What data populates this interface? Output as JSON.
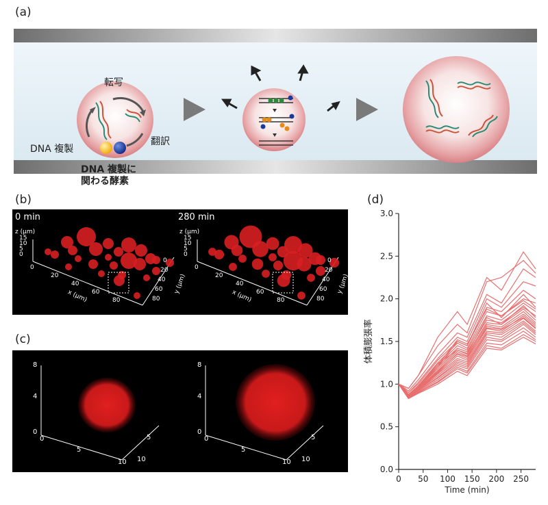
{
  "panels": {
    "a": {
      "label": "(a)",
      "labels": {
        "transcription": "転写",
        "translation": "翻訳",
        "dna_replication": "DNA 複製",
        "enzymes_line1": "DNA 複製に",
        "enzymes_line2": "関わる酵素"
      }
    },
    "b": {
      "label": "(b)",
      "time_left": "0 min",
      "time_right": "280 min",
      "axis_z": "z (µm)",
      "axis_x": "x (µm)",
      "axis_y": "y (µm)",
      "z_ticks": [
        "15",
        "10",
        "5",
        "0"
      ],
      "x_ticks": [
        "0",
        "20",
        "40",
        "60",
        "80"
      ],
      "y_ticks": [
        "0",
        "20",
        "40",
        "60",
        "80"
      ]
    },
    "c": {
      "label": "(c)",
      "z_ticks": [
        "8",
        "4",
        "0"
      ],
      "x_ticks": [
        "5",
        "10"
      ],
      "y_ticks": [
        "5",
        "10"
      ]
    },
    "d": {
      "label": "(d)"
    }
  },
  "colors": {
    "line": "#e86f6f",
    "cell_red": "#d81f22"
  },
  "chart_data": {
    "type": "line",
    "xlabel": "Time (min)",
    "ylabel": "体積膨張率",
    "xlim": [
      0,
      280
    ],
    "ylim": [
      0.0,
      3.0
    ],
    "x_ticks": [
      0,
      50,
      100,
      150,
      200,
      250
    ],
    "y_ticks": [
      0.0,
      0.5,
      1.0,
      1.5,
      2.0,
      2.5,
      3.0
    ],
    "x": [
      0,
      20,
      40,
      80,
      120,
      140,
      180,
      210,
      255,
      280
    ],
    "series": [
      {
        "values": [
          1.0,
          0.95,
          1.1,
          1.55,
          1.85,
          1.7,
          2.25,
          2.1,
          2.55,
          2.35
        ]
      },
      {
        "values": [
          1.0,
          0.95,
          1.1,
          1.45,
          1.7,
          1.6,
          2.2,
          2.25,
          2.45,
          2.3
        ]
      },
      {
        "values": [
          1.0,
          0.92,
          1.05,
          1.35,
          1.6,
          1.55,
          2.05,
          1.95,
          2.35,
          2.25
        ]
      },
      {
        "values": [
          1.0,
          0.9,
          1.02,
          1.3,
          1.55,
          1.5,
          2.0,
          1.9,
          2.2,
          2.15
        ]
      },
      {
        "values": [
          1.0,
          0.9,
          1.0,
          1.28,
          1.5,
          1.45,
          1.9,
          1.85,
          2.1,
          2.0
        ]
      },
      {
        "values": [
          1.0,
          0.88,
          0.98,
          1.25,
          1.48,
          1.42,
          1.85,
          1.8,
          2.0,
          1.95
        ]
      },
      {
        "values": [
          1.0,
          0.88,
          0.98,
          1.22,
          1.45,
          1.4,
          1.8,
          1.75,
          1.95,
          1.85
        ]
      },
      {
        "values": [
          1.0,
          0.87,
          0.97,
          1.2,
          1.42,
          1.38,
          1.75,
          1.72,
          1.9,
          1.8
        ]
      },
      {
        "values": [
          1.0,
          0.87,
          0.96,
          1.18,
          1.4,
          1.35,
          1.72,
          1.7,
          1.88,
          1.75
        ]
      },
      {
        "values": [
          1.0,
          0.86,
          0.95,
          1.16,
          1.38,
          1.33,
          1.7,
          1.67,
          1.85,
          1.72
        ]
      },
      {
        "values": [
          1.0,
          0.86,
          0.95,
          1.15,
          1.35,
          1.3,
          1.68,
          1.65,
          1.82,
          1.7
        ]
      },
      {
        "values": [
          1.0,
          0.85,
          0.94,
          1.13,
          1.33,
          1.28,
          1.65,
          1.62,
          1.8,
          1.68
        ]
      },
      {
        "values": [
          1.0,
          0.85,
          0.93,
          1.12,
          1.3,
          1.26,
          1.62,
          1.6,
          1.77,
          1.65
        ]
      },
      {
        "values": [
          1.0,
          0.85,
          0.93,
          1.1,
          1.28,
          1.24,
          1.6,
          1.58,
          1.74,
          1.62
        ]
      },
      {
        "values": [
          1.0,
          0.84,
          0.92,
          1.08,
          1.26,
          1.22,
          1.58,
          1.55,
          1.72,
          1.6
        ]
      },
      {
        "values": [
          1.0,
          0.84,
          0.92,
          1.07,
          1.24,
          1.2,
          1.55,
          1.52,
          1.7,
          1.58
        ]
      },
      {
        "values": [
          1.0,
          0.84,
          0.91,
          1.05,
          1.22,
          1.18,
          1.52,
          1.5,
          1.66,
          1.55
        ]
      },
      {
        "values": [
          1.0,
          0.83,
          0.9,
          1.03,
          1.2,
          1.15,
          1.48,
          1.46,
          1.62,
          1.52
        ]
      },
      {
        "values": [
          1.0,
          0.83,
          0.9,
          1.02,
          1.18,
          1.13,
          1.45,
          1.42,
          1.58,
          1.5
        ]
      },
      {
        "values": [
          1.0,
          0.83,
          0.89,
          1.0,
          1.15,
          1.1,
          1.42,
          1.4,
          1.55,
          1.47
        ]
      },
      {
        "values": [
          1.0,
          0.85,
          0.95,
          1.2,
          1.5,
          1.45,
          1.95,
          1.78,
          2.05,
          1.9
        ]
      },
      {
        "values": [
          1.0,
          0.86,
          0.96,
          1.22,
          1.52,
          1.47,
          1.88,
          1.8,
          1.98,
          1.88
        ]
      },
      {
        "values": [
          1.0,
          0.87,
          0.97,
          1.24,
          1.4,
          1.36,
          1.78,
          1.7,
          1.92,
          1.78
        ]
      },
      {
        "values": [
          1.0,
          0.86,
          0.94,
          1.14,
          1.36,
          1.32,
          1.66,
          1.64,
          1.78,
          1.66
        ]
      }
    ]
  }
}
